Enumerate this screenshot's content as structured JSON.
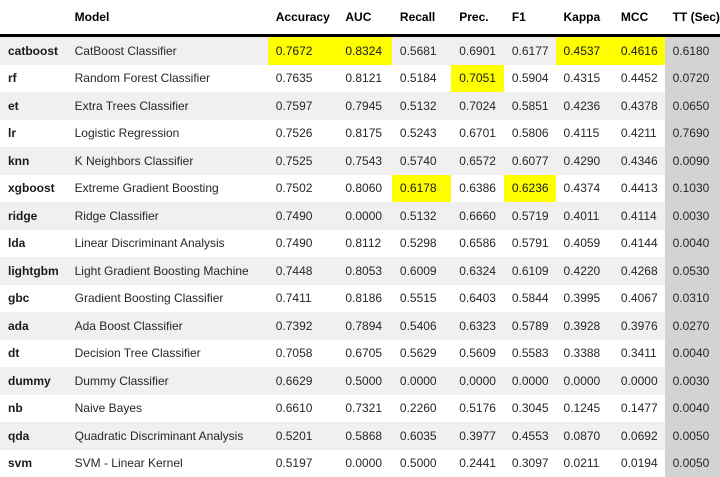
{
  "chart_data": {
    "type": "table",
    "title": "Model comparison metrics table",
    "index_header": "",
    "columns": [
      "Model",
      "Accuracy",
      "AUC",
      "Recall",
      "Prec.",
      "F1",
      "Kappa",
      "MCC",
      "TT (Sec)"
    ],
    "rows": [
      {
        "index": "catboost",
        "cells": [
          "CatBoost Classifier",
          "0.7672",
          "0.8324",
          "0.5681",
          "0.6901",
          "0.6177",
          "0.4537",
          "0.4616",
          "0.6180"
        ],
        "highlight_cols": [
          "Accuracy",
          "AUC",
          "Kappa",
          "MCC"
        ]
      },
      {
        "index": "rf",
        "cells": [
          "Random Forest Classifier",
          "0.7635",
          "0.8121",
          "0.5184",
          "0.7051",
          "0.5904",
          "0.4315",
          "0.4452",
          "0.0720"
        ],
        "highlight_cols": [
          "Prec."
        ]
      },
      {
        "index": "et",
        "cells": [
          "Extra Trees Classifier",
          "0.7597",
          "0.7945",
          "0.5132",
          "0.7024",
          "0.5851",
          "0.4236",
          "0.4378",
          "0.0650"
        ],
        "highlight_cols": []
      },
      {
        "index": "lr",
        "cells": [
          "Logistic Regression",
          "0.7526",
          "0.8175",
          "0.5243",
          "0.6701",
          "0.5806",
          "0.4115",
          "0.4211",
          "0.7690"
        ],
        "highlight_cols": []
      },
      {
        "index": "knn",
        "cells": [
          "K Neighbors Classifier",
          "0.7525",
          "0.7543",
          "0.5740",
          "0.6572",
          "0.6077",
          "0.4290",
          "0.4346",
          "0.0090"
        ],
        "highlight_cols": []
      },
      {
        "index": "xgboost",
        "cells": [
          "Extreme Gradient Boosting",
          "0.7502",
          "0.8060",
          "0.6178",
          "0.6386",
          "0.6236",
          "0.4374",
          "0.4413",
          "0.1030"
        ],
        "highlight_cols": [
          "Recall",
          "F1"
        ]
      },
      {
        "index": "ridge",
        "cells": [
          "Ridge Classifier",
          "0.7490",
          "0.0000",
          "0.5132",
          "0.6660",
          "0.5719",
          "0.4011",
          "0.4114",
          "0.0030"
        ],
        "highlight_cols": []
      },
      {
        "index": "lda",
        "cells": [
          "Linear Discriminant Analysis",
          "0.7490",
          "0.8112",
          "0.5298",
          "0.6586",
          "0.5791",
          "0.4059",
          "0.4144",
          "0.0040"
        ],
        "highlight_cols": []
      },
      {
        "index": "lightgbm",
        "cells": [
          "Light Gradient Boosting Machine",
          "0.7448",
          "0.8053",
          "0.6009",
          "0.6324",
          "0.6109",
          "0.4220",
          "0.4268",
          "0.0530"
        ],
        "highlight_cols": []
      },
      {
        "index": "gbc",
        "cells": [
          "Gradient Boosting Classifier",
          "0.7411",
          "0.8186",
          "0.5515",
          "0.6403",
          "0.5844",
          "0.3995",
          "0.4067",
          "0.0310"
        ],
        "highlight_cols": []
      },
      {
        "index": "ada",
        "cells": [
          "Ada Boost Classifier",
          "0.7392",
          "0.7894",
          "0.5406",
          "0.6323",
          "0.5789",
          "0.3928",
          "0.3976",
          "0.0270"
        ],
        "highlight_cols": []
      },
      {
        "index": "dt",
        "cells": [
          "Decision Tree Classifier",
          "0.7058",
          "0.6705",
          "0.5629",
          "0.5609",
          "0.5583",
          "0.3388",
          "0.3411",
          "0.0040"
        ],
        "highlight_cols": []
      },
      {
        "index": "dummy",
        "cells": [
          "Dummy Classifier",
          "0.6629",
          "0.5000",
          "0.0000",
          "0.0000",
          "0.0000",
          "0.0000",
          "0.0000",
          "0.0030"
        ],
        "highlight_cols": []
      },
      {
        "index": "nb",
        "cells": [
          "Naive Bayes",
          "0.6610",
          "0.7321",
          "0.2260",
          "0.5176",
          "0.3045",
          "0.1245",
          "0.1477",
          "0.0040"
        ],
        "highlight_cols": []
      },
      {
        "index": "qda",
        "cells": [
          "Quadratic Discriminant Analysis",
          "0.5201",
          "0.5868",
          "0.6035",
          "0.3977",
          "0.4553",
          "0.0870",
          "0.0692",
          "0.0050"
        ],
        "highlight_cols": []
      },
      {
        "index": "svm",
        "cells": [
          "SVM - Linear Kernel",
          "0.5197",
          "0.0000",
          "0.5000",
          "0.2441",
          "0.3097",
          "0.0211",
          "0.0194",
          "0.0050"
        ],
        "highlight_cols": []
      }
    ]
  },
  "colors": {
    "best_metric_highlight": "#ffff00",
    "tt_column_background": "#d3d3d3",
    "row_stripe_background": "#f0f0f0",
    "header_border": "#000000",
    "text": "#262626"
  }
}
